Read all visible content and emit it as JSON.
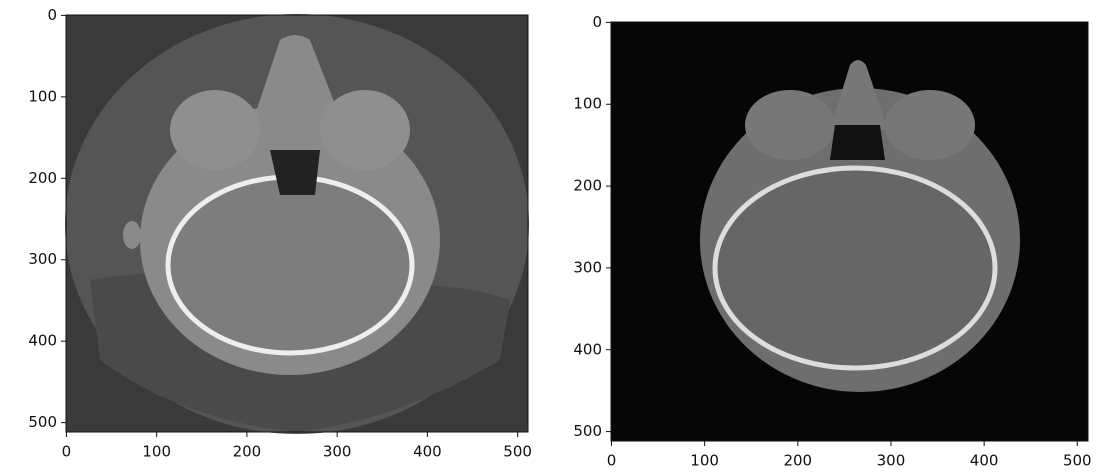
{
  "chart_data": [
    {
      "type": "image",
      "xlim": [
        -0.5,
        511.5
      ],
      "ylim": [
        511.5,
        -0.5
      ],
      "xticks": [
        0,
        100,
        200,
        300,
        400,
        500
      ],
      "yticks": [
        0,
        100,
        200,
        300,
        400,
        500
      ]
    },
    {
      "type": "image",
      "xlim": [
        -0.5,
        511.5
      ],
      "ylim": [
        511.5,
        -0.5
      ],
      "xticks": [
        0,
        100,
        200,
        300,
        400,
        500
      ],
      "yticks": [
        0,
        100,
        200,
        300,
        400,
        500
      ]
    }
  ]
}
